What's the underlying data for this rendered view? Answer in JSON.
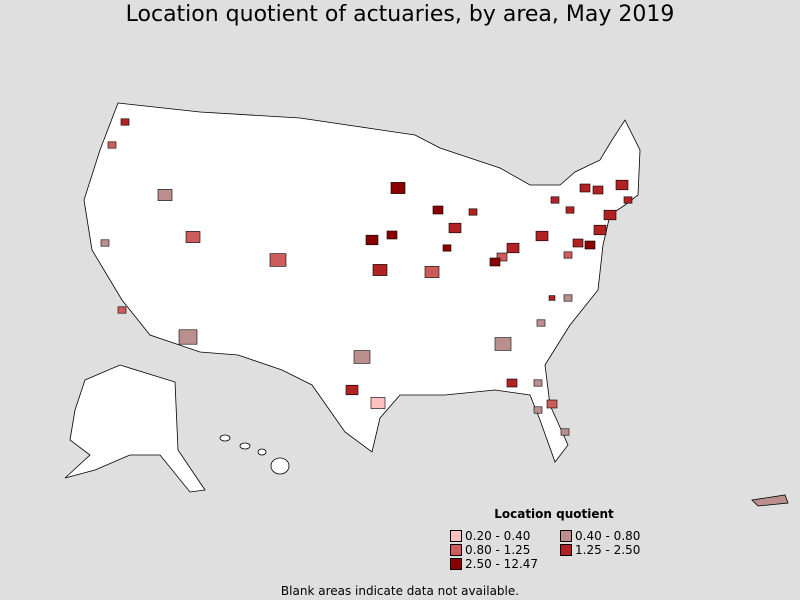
{
  "title": "Location quotient of actuaries, by area, May 2019",
  "legend": {
    "title": "Location quotient",
    "items": [
      {
        "label": "0.20 - 0.40",
        "color": "#ffc0c0"
      },
      {
        "label": "0.40 - 0.80",
        "color": "#bc8f8f"
      },
      {
        "label": "0.80 - 1.25",
        "color": "#cd5c5c"
      },
      {
        "label": "1.25 - 2.50",
        "color": "#b22222"
      },
      {
        "label": "2.50 - 12.47",
        "color": "#8b0000"
      }
    ]
  },
  "note": "Blank areas indicate data not available.",
  "colors": {
    "background": "#dfdfdf",
    "blank": "#ffffff",
    "border": "#000000"
  }
}
